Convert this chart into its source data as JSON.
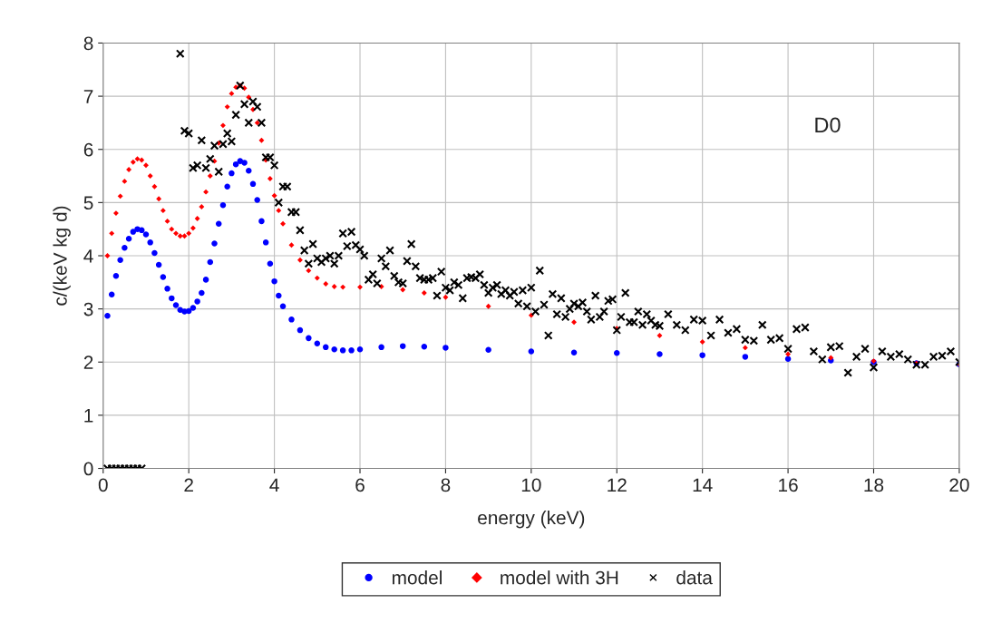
{
  "chart_data": {
    "type": "scatter",
    "xlabel": "energy (keV)",
    "ylabel": "c/(keV kg d)",
    "annotations": [
      "D0"
    ],
    "xlim": [
      0,
      20
    ],
    "xticks": [
      0,
      2,
      4,
      6,
      8,
      10,
      12,
      14,
      16,
      18,
      20
    ],
    "ylim": [
      0,
      8
    ],
    "yticks": [
      0,
      1,
      2,
      3,
      4,
      5,
      6,
      7,
      8
    ],
    "grid": true,
    "legend": "bottom",
    "series": [
      {
        "name": "model",
        "color": "#0000ff",
        "marker": "circle",
        "x": [
          0.1,
          0.2,
          0.3,
          0.4,
          0.5,
          0.6,
          0.7,
          0.8,
          0.9,
          1.0,
          1.1,
          1.2,
          1.3,
          1.4,
          1.5,
          1.6,
          1.7,
          1.8,
          1.9,
          2.0,
          2.1,
          2.2,
          2.3,
          2.4,
          2.5,
          2.6,
          2.7,
          2.8,
          2.9,
          3.0,
          3.1,
          3.2,
          3.3,
          3.4,
          3.5,
          3.6,
          3.7,
          3.8,
          3.9,
          4.0,
          4.1,
          4.2,
          4.4,
          4.6,
          4.8,
          5.0,
          5.2,
          5.4,
          5.6,
          5.8,
          6.0,
          6.5,
          7.0,
          7.5,
          8,
          9,
          10,
          11,
          12,
          13,
          14,
          15,
          16,
          17,
          18,
          19,
          20
        ],
        "values": [
          2.87,
          3.27,
          3.62,
          3.92,
          4.15,
          4.32,
          4.45,
          4.5,
          4.48,
          4.4,
          4.25,
          4.05,
          3.83,
          3.6,
          3.38,
          3.2,
          3.07,
          2.98,
          2.95,
          2.96,
          3.02,
          3.14,
          3.3,
          3.55,
          3.88,
          4.23,
          4.6,
          4.95,
          5.3,
          5.55,
          5.72,
          5.78,
          5.75,
          5.6,
          5.35,
          5.05,
          4.65,
          4.25,
          3.85,
          3.52,
          3.25,
          3.05,
          2.8,
          2.6,
          2.45,
          2.35,
          2.28,
          2.24,
          2.22,
          2.22,
          2.24,
          2.28,
          2.3,
          2.29,
          2.27,
          2.23,
          2.2,
          2.18,
          2.17,
          2.15,
          2.13,
          2.1,
          2.06,
          2.03,
          2.0,
          1.98,
          1.96
        ]
      },
      {
        "name": "model with 3H",
        "color": "#ff0000",
        "marker": "diamond",
        "x": [
          0.1,
          0.2,
          0.3,
          0.4,
          0.5,
          0.6,
          0.7,
          0.8,
          0.9,
          1.0,
          1.1,
          1.2,
          1.3,
          1.4,
          1.5,
          1.6,
          1.7,
          1.8,
          1.9,
          2.0,
          2.1,
          2.2,
          2.3,
          2.4,
          2.5,
          2.6,
          2.7,
          2.8,
          2.9,
          3.0,
          3.1,
          3.2,
          3.3,
          3.4,
          3.5,
          3.6,
          3.7,
          3.8,
          3.9,
          4.0,
          4.1,
          4.2,
          4.4,
          4.6,
          4.8,
          5.0,
          5.2,
          5.4,
          5.6,
          6.0,
          6.5,
          7,
          7.5,
          8,
          9,
          10,
          11,
          12,
          13,
          14,
          15,
          16,
          17,
          18,
          19,
          20
        ],
        "values": [
          4.0,
          4.42,
          4.8,
          5.12,
          5.4,
          5.62,
          5.76,
          5.82,
          5.8,
          5.7,
          5.5,
          5.3,
          5.07,
          4.85,
          4.65,
          4.5,
          4.42,
          4.37,
          4.37,
          4.42,
          4.52,
          4.7,
          4.92,
          5.2,
          5.5,
          5.78,
          6.12,
          6.45,
          6.8,
          7.05,
          7.17,
          7.2,
          7.15,
          6.98,
          6.75,
          6.5,
          6.17,
          5.8,
          5.45,
          5.13,
          4.85,
          4.6,
          4.2,
          3.92,
          3.72,
          3.58,
          3.47,
          3.42,
          3.41,
          3.41,
          3.42,
          3.36,
          3.3,
          3.22,
          3.05,
          2.88,
          2.75,
          2.63,
          2.5,
          2.38,
          2.27,
          2.15,
          2.08,
          2.02,
          1.98,
          1.96
        ]
      },
      {
        "name": "data",
        "color": "#000000",
        "marker": "cross",
        "x": [
          0.1,
          0.2,
          0.3,
          0.4,
          0.5,
          0.6,
          0.7,
          0.8,
          0.9,
          1.8,
          1.9,
          2.0,
          2.1,
          2.2,
          2.3,
          2.4,
          2.5,
          2.6,
          2.7,
          2.8,
          2.9,
          3.0,
          3.1,
          3.2,
          3.3,
          3.4,
          3.5,
          3.6,
          3.7,
          3.8,
          3.9,
          4.0,
          4.1,
          4.2,
          4.3,
          4.4,
          4.5,
          4.6,
          4.7,
          4.8,
          4.9,
          5.0,
          5.1,
          5.2,
          5.3,
          5.4,
          5.5,
          5.6,
          5.7,
          5.8,
          5.9,
          6.0,
          6.1,
          6.2,
          6.3,
          6.4,
          6.5,
          6.6,
          6.7,
          6.8,
          6.9,
          7.0,
          7.1,
          7.2,
          7.3,
          7.4,
          7.5,
          7.6,
          7.7,
          7.8,
          7.9,
          8.0,
          8.1,
          8.2,
          8.3,
          8.4,
          8.5,
          8.6,
          8.7,
          8.8,
          8.9,
          9.0,
          9.1,
          9.2,
          9.3,
          9.4,
          9.5,
          9.6,
          9.7,
          9.8,
          9.9,
          10.0,
          10.1,
          10.2,
          10.3,
          10.4,
          10.5,
          10.6,
          10.7,
          10.8,
          10.9,
          11.0,
          11.1,
          11.2,
          11.3,
          11.4,
          11.5,
          11.6,
          11.7,
          11.8,
          11.9,
          12.0,
          12.1,
          12.2,
          12.3,
          12.4,
          12.5,
          12.6,
          12.7,
          12.8,
          12.9,
          13.0,
          13.2,
          13.4,
          13.6,
          13.8,
          14.0,
          14.2,
          14.4,
          14.6,
          14.8,
          15.0,
          15.2,
          15.4,
          15.6,
          15.8,
          16.0,
          16.2,
          16.4,
          16.6,
          16.8,
          17.0,
          17.2,
          17.4,
          17.6,
          17.8,
          18.0,
          18.2,
          18.4,
          18.6,
          18.8,
          19.0,
          19.2,
          19.4,
          19.6,
          19.8,
          20.0
        ],
        "values": [
          0,
          0,
          0,
          0,
          0,
          0,
          0,
          0,
          0,
          7.8,
          6.35,
          6.3,
          5.65,
          5.7,
          6.17,
          5.65,
          5.82,
          6.07,
          5.58,
          6.1,
          6.3,
          6.15,
          6.65,
          7.2,
          6.85,
          6.5,
          6.9,
          6.8,
          6.5,
          5.85,
          5.85,
          5.7,
          5.0,
          5.3,
          5.3,
          4.82,
          4.82,
          4.48,
          4.1,
          3.85,
          4.22,
          3.95,
          3.88,
          3.95,
          4.0,
          3.85,
          4.0,
          4.42,
          4.18,
          4.45,
          4.2,
          4.12,
          4.0,
          3.55,
          3.65,
          3.48,
          3.95,
          3.8,
          4.1,
          3.62,
          3.5,
          3.48,
          3.9,
          4.22,
          3.8,
          3.58,
          3.55,
          3.55,
          3.58,
          3.25,
          3.7,
          3.4,
          3.35,
          3.5,
          3.45,
          3.2,
          3.58,
          3.6,
          3.58,
          3.65,
          3.45,
          3.3,
          3.4,
          3.45,
          3.28,
          3.35,
          3.25,
          3.32,
          3.1,
          3.35,
          3.05,
          3.4,
          2.95,
          3.72,
          3.08,
          2.5,
          3.28,
          2.9,
          3.2,
          2.85,
          3.0,
          3.1,
          3.05,
          3.12,
          2.95,
          2.8,
          3.25,
          2.85,
          2.95,
          3.15,
          3.18,
          2.6,
          2.85,
          3.3,
          2.75,
          2.75,
          2.95,
          2.7,
          2.9,
          2.78,
          2.7,
          2.68,
          2.9,
          2.7,
          2.6,
          2.8,
          2.78,
          2.5,
          2.8,
          2.55,
          2.62,
          2.42,
          2.4,
          2.7,
          2.42,
          2.45,
          2.25,
          2.62,
          2.65,
          2.2,
          2.05,
          2.28,
          2.3,
          1.8,
          2.1,
          2.25,
          1.9,
          2.2,
          2.1,
          2.15,
          2.05,
          1.95,
          1.95,
          2.1,
          2.12,
          2.2,
          2.0
        ]
      }
    ]
  }
}
